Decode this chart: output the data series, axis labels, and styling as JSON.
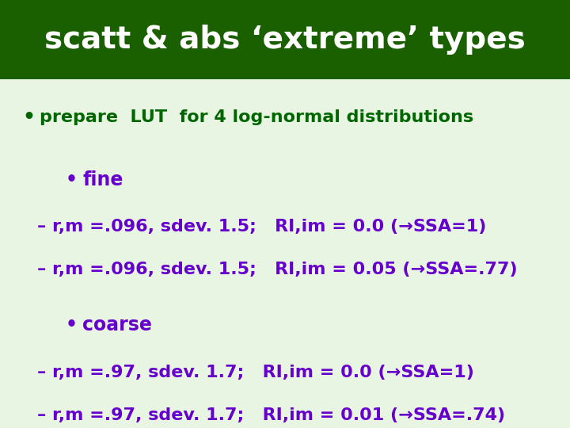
{
  "title": "scatt & abs ‘extreme’ types",
  "title_color": "#ffffff",
  "title_bg_color": "#1a6000",
  "body_bg_color": "#e8f5e2",
  "bullet_color": "#006600",
  "text_color": "#6600cc",
  "bullet1": "prepare  LUT  for 4 log-normal distributions",
  "sub_bullet_fine": "fine",
  "sub_bullet_coarse": "coarse",
  "line1": "– r,m =.096, sdev. 1.5;   RI,im = 0.0 (→SSA=1)",
  "line2": "– r,m =.096, sdev. 1.5;   RI,im = 0.05 (→SSA=.77)",
  "line3": "– r,m =.97, sdev. 1.7;   RI,im = 0.0 (→SSA=1)",
  "line4": "– r,m =.97, sdev. 1.7;   RI,im = 0.01 (→SSA=.74)",
  "title_fontsize": 28,
  "body_fontsize": 16,
  "sub_fontsize": 17
}
